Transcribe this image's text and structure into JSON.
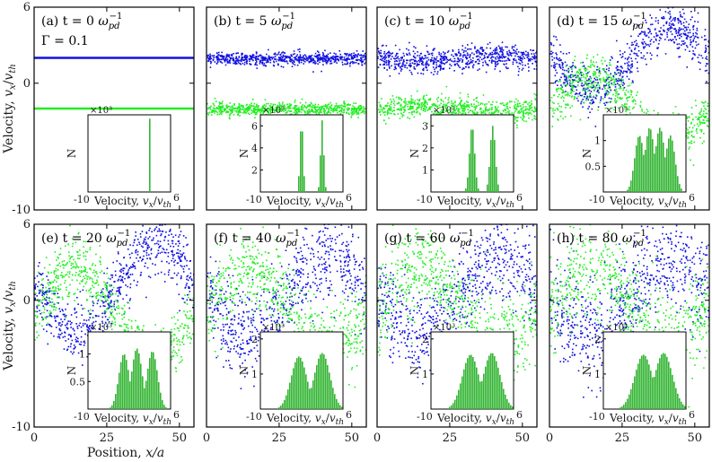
{
  "figure": {
    "xlabel": "Position, x/a",
    "ylabel": "Velocity, v_x/v_th",
    "ylabel_main": "Velocity, v",
    "ylabel_sub": "x",
    "ylabel_sep": "/v",
    "ylabel_sub2": "th",
    "colors": {
      "beam1": "#1010e0",
      "beam2": "#22ee22",
      "hist": "#33b533",
      "axis": "#000000"
    }
  },
  "chart_data": [
    {
      "type": "scatter",
      "panel": "(a)",
      "title": "t = 0 ω_pd^-1",
      "t": 0,
      "gamma_label": "Γ = 0.1",
      "x_range": [
        0,
        55
      ],
      "y_range": [
        -10,
        6
      ],
      "x_ticks": [
        0,
        25,
        50
      ],
      "y_ticks": [
        -10,
        0,
        6
      ],
      "beam_blue": {
        "center": 2,
        "spread": 0,
        "amp": 0
      },
      "beam_green": {
        "center": -2,
        "spread": 0,
        "amp": 0
      },
      "inset": {
        "type": "bar",
        "x_range": [
          -10,
          6
        ],
        "xlabel": "Velocity, v_x/v_th",
        "ylabel": "N",
        "sci_factor": "×10^3",
        "y_ticks": [],
        "ymax": 1,
        "peaks": [
          {
            "center": -2,
            "width": 0.05,
            "height": 0.95
          },
          {
            "center": 2,
            "width": 0.05,
            "height": 0.95
          }
        ]
      }
    },
    {
      "type": "scatter",
      "panel": "(b)",
      "title": "t = 5 ω_pd^-1",
      "t": 5,
      "x_range": [
        0,
        55
      ],
      "y_range": [
        -10,
        6
      ],
      "x_ticks": [
        0,
        25,
        50
      ],
      "y_ticks": [
        -10,
        0,
        6
      ],
      "beam_blue": {
        "center": 2,
        "spread": 0.25,
        "amp": 0
      },
      "beam_green": {
        "center": -2,
        "spread": 0.25,
        "amp": 0
      },
      "inset": {
        "type": "bar",
        "x_range": [
          -10,
          6
        ],
        "xlabel": "Velocity, v_x/v_th",
        "ylabel": "N",
        "sci_factor": "×10^3",
        "y_ticks": [
          2,
          4,
          6
        ],
        "ymax": 7,
        "peaks": [
          {
            "center": -2,
            "width": 0.3,
            "height": 6.5
          },
          {
            "center": 2,
            "width": 0.3,
            "height": 6.5
          }
        ]
      }
    },
    {
      "type": "scatter",
      "panel": "(c)",
      "title": "t = 10 ω_pd^-1",
      "t": 10,
      "x_range": [
        0,
        55
      ],
      "y_range": [
        -10,
        6
      ],
      "x_ticks": [
        0,
        25,
        50
      ],
      "y_ticks": [
        -10,
        0,
        6
      ],
      "beam_blue": {
        "center": 2,
        "spread": 0.45,
        "amp": 0.2
      },
      "beam_green": {
        "center": -2,
        "spread": 0.45,
        "amp": 0.2
      },
      "inset": {
        "type": "bar",
        "x_range": [
          -10,
          6
        ],
        "xlabel": "Velocity, v_x/v_th",
        "ylabel": "N",
        "sci_factor": "×10^3",
        "y_ticks": [
          1,
          2,
          3
        ],
        "ymax": 3.5,
        "peaks": [
          {
            "center": -2,
            "width": 0.5,
            "height": 3
          },
          {
            "center": 2,
            "width": 0.5,
            "height": 3
          }
        ]
      }
    },
    {
      "type": "scatter",
      "panel": "(d)",
      "title": "t = 15 ω_pd^-1",
      "t": 15,
      "x_range": [
        0,
        55
      ],
      "y_range": [
        -10,
        6
      ],
      "x_ticks": [
        0,
        25,
        50
      ],
      "y_ticks": [
        -10,
        0,
        6
      ],
      "beam_blue": {
        "center": 2,
        "spread": 0.9,
        "amp": 2.5
      },
      "beam_green": {
        "center": -2,
        "spread": 0.9,
        "amp": 2.5
      },
      "inset": {
        "type": "bar",
        "x_range": [
          -10,
          6
        ],
        "xlabel": "Velocity, v_x/v_th",
        "ylabel": "N",
        "sci_factor": "×10^3",
        "y_ticks": [
          0.5,
          1
        ],
        "ymax": 1.5,
        "peaks": [
          {
            "center": -3,
            "width": 0.9,
            "height": 1.1
          },
          {
            "center": -1,
            "width": 0.9,
            "height": 1.25
          },
          {
            "center": 1,
            "width": 0.9,
            "height": 1.25
          },
          {
            "center": 3,
            "width": 0.9,
            "height": 1.1
          }
        ]
      }
    },
    {
      "type": "scatter",
      "panel": "(e)",
      "title": "t = 20 ω_pd^-1",
      "t": 20,
      "x_range": [
        0,
        55
      ],
      "y_range": [
        -10,
        6
      ],
      "x_ticks": [
        0,
        25,
        50
      ],
      "y_ticks": [
        -10,
        0,
        6
      ],
      "beam_blue": {
        "center": 1,
        "spread": 1.2,
        "amp": 3.5
      },
      "beam_green": {
        "center": -1,
        "spread": 1.2,
        "amp": 3.5
      },
      "inset": {
        "type": "bar",
        "x_range": [
          -10,
          6
        ],
        "xlabel": "Velocity, v_x/v_th",
        "ylabel": "N",
        "sci_factor": "×10^3",
        "y_ticks": [
          0.5,
          1
        ],
        "ymax": 1.4,
        "peaks": [
          {
            "center": -3,
            "width": 1.0,
            "height": 1.0
          },
          {
            "center": -0.5,
            "width": 1.0,
            "height": 1.1
          },
          {
            "center": 2.5,
            "width": 1.0,
            "height": 1.05
          }
        ]
      }
    },
    {
      "type": "scatter",
      "panel": "(f)",
      "title": "t = 40 ω_pd^-1",
      "t": 40,
      "x_range": [
        0,
        55
      ],
      "y_range": [
        -10,
        6
      ],
      "x_ticks": [
        0,
        25,
        50
      ],
      "y_ticks": [
        -10,
        0,
        6
      ],
      "beam_blue": {
        "center": 0.5,
        "spread": 1.6,
        "amp": 3.2
      },
      "beam_green": {
        "center": -0.5,
        "spread": 1.6,
        "amp": 3.2
      },
      "inset": {
        "type": "bar",
        "x_range": [
          -10,
          6
        ],
        "xlabel": "Velocity, v_x/v_th",
        "ylabel": "N",
        "sci_factor": "×10^3",
        "y_ticks": [
          1,
          2
        ],
        "ymax": 2.2,
        "peaks": [
          {
            "center": -2.5,
            "width": 1.5,
            "height": 1.5
          },
          {
            "center": 2,
            "width": 1.5,
            "height": 1.6
          }
        ]
      }
    },
    {
      "type": "scatter",
      "panel": "(g)",
      "title": "t = 60 ω_pd^-1",
      "t": 60,
      "x_range": [
        0,
        55
      ],
      "y_range": [
        -10,
        6
      ],
      "x_ticks": [
        0,
        25,
        50
      ],
      "y_ticks": [
        -10,
        0,
        6
      ],
      "beam_blue": {
        "center": 0.3,
        "spread": 1.8,
        "amp": 3.0
      },
      "beam_green": {
        "center": -0.3,
        "spread": 1.8,
        "amp": 3.0
      },
      "inset": {
        "type": "bar",
        "x_range": [
          -10,
          6
        ],
        "xlabel": "Velocity, v_x/v_th",
        "ylabel": "N",
        "sci_factor": "×10^3",
        "y_ticks": [
          1,
          2
        ],
        "ymax": 2.2,
        "peaks": [
          {
            "center": -2.3,
            "width": 1.6,
            "height": 1.55
          },
          {
            "center": 1.8,
            "width": 1.6,
            "height": 1.6
          }
        ]
      }
    },
    {
      "type": "scatter",
      "panel": "(h)",
      "title": "t = 80 ω_pd^-1",
      "t": 80,
      "x_range": [
        0,
        55
      ],
      "y_range": [
        -10,
        6
      ],
      "x_ticks": [
        0,
        25,
        50
      ],
      "y_ticks": [
        -10,
        0,
        6
      ],
      "beam_blue": {
        "center": 0.2,
        "spread": 1.9,
        "amp": 2.9
      },
      "beam_green": {
        "center": -0.2,
        "spread": 1.9,
        "amp": 2.9
      },
      "inset": {
        "type": "bar",
        "x_range": [
          -10,
          6
        ],
        "xlabel": "Velocity, v_x/v_th",
        "ylabel": "N",
        "sci_factor": "×10^3",
        "y_ticks": [
          1,
          2
        ],
        "ymax": 2.2,
        "peaks": [
          {
            "center": -2.2,
            "width": 1.7,
            "height": 1.55
          },
          {
            "center": 1.7,
            "width": 1.7,
            "height": 1.6
          }
        ]
      }
    }
  ]
}
